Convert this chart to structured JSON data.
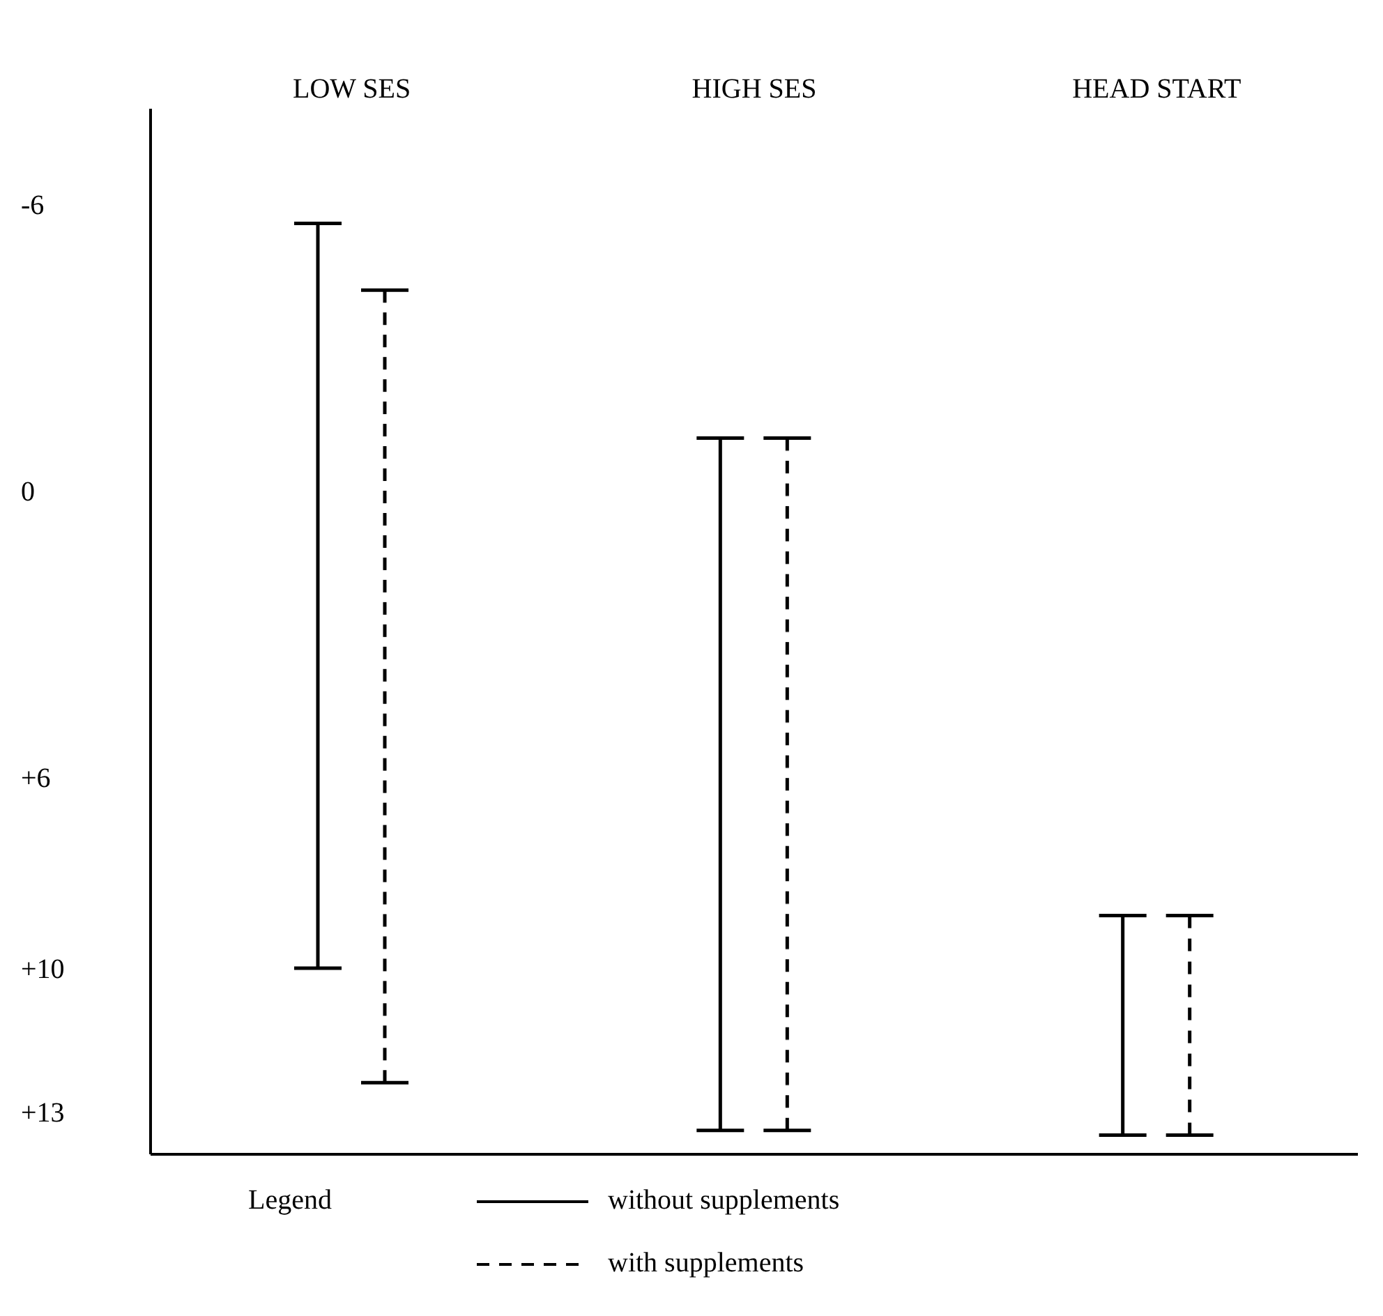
{
  "chart_data": {
    "type": "bar",
    "categories": [
      "LOW SES",
      "HIGH SES",
      "HEAD START"
    ],
    "series": [
      {
        "name": "without supplements",
        "color": "#000000",
        "line_style": "solid",
        "base": [
          -5.6,
          -1.1,
          8.9
        ],
        "values": [
          15.6,
          14.5,
          4.6
        ]
      },
      {
        "name": "with supplements",
        "color": "#000000",
        "line_style": "dashed",
        "base": [
          -4.2,
          -1.1,
          8.9
        ],
        "values": [
          16.6,
          14.5,
          4.6
        ]
      }
    ],
    "ylim": [
      13.9,
      -8
    ],
    "yticks": [
      -6,
      0,
      {
        "value": 6,
        "label": "+6"
      },
      {
        "value": 10,
        "label": "+10"
      },
      {
        "value": 13,
        "label": "+13"
      }
    ],
    "legend_title": "Legend",
    "legend": "bottom"
  }
}
